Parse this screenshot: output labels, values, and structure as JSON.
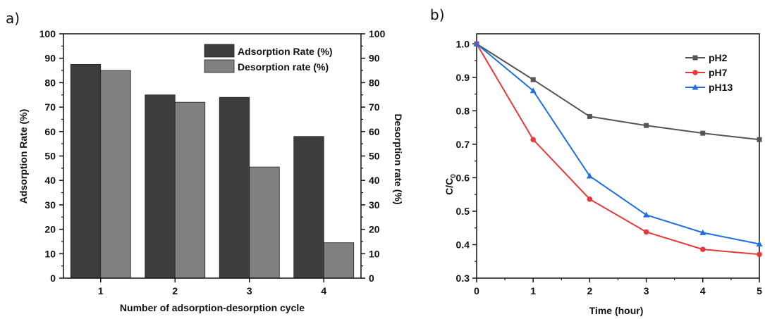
{
  "panels": {
    "a_label": "a)",
    "b_label": "b)"
  },
  "chart_data": [
    {
      "type": "bar",
      "categories": [
        "1",
        "2",
        "3",
        "4"
      ],
      "series": [
        {
          "name": "Adsorption Rate (%)",
          "values": [
            87.5,
            75,
            74,
            58
          ],
          "color": "#3d3d3d",
          "axis": "left"
        },
        {
          "name": "Desorption rate (%)",
          "values": [
            85,
            72,
            45.5,
            14.5
          ],
          "color": "#808080",
          "axis": "right"
        }
      ],
      "xlabel": "Number of adsorption-desorption cycle",
      "ylabel": "Adsorption Rate (%)",
      "y2label": "Desorption rate (%)",
      "ylim": [
        0,
        100
      ],
      "y2lim": [
        0,
        100
      ],
      "yticks": [
        "0",
        "10",
        "20",
        "30",
        "40",
        "50",
        "60",
        "70",
        "80",
        "90",
        "100"
      ],
      "legend_position": "top-right",
      "grid": false
    },
    {
      "type": "line",
      "x": [
        0,
        1,
        2,
        3,
        4,
        5
      ],
      "series": [
        {
          "name": "pH2",
          "values": [
            1.0,
            0.893,
            0.783,
            0.756,
            0.733,
            0.714
          ],
          "color": "#555555",
          "marker": "square"
        },
        {
          "name": "pH7",
          "values": [
            1.0,
            0.714,
            0.536,
            0.438,
            0.386,
            0.371
          ],
          "color": "#e8393a",
          "marker": "circle"
        },
        {
          "name": "pH13",
          "values": [
            1.0,
            0.86,
            0.605,
            0.489,
            0.436,
            0.402
          ],
          "color": "#1f6fdd",
          "marker": "triangle"
        }
      ],
      "xlabel": "Time (hour)",
      "ylabel_main": "C/C",
      "ylabel_sub": "0",
      "xlim": [
        0,
        5
      ],
      "ylim": [
        0.3,
        1.03
      ],
      "xticks": [
        "0",
        "1",
        "2",
        "3",
        "4",
        "5"
      ],
      "yticks": [
        "0.3",
        "0.4",
        "0.5",
        "0.6",
        "0.7",
        "0.8",
        "0.9",
        "1.0"
      ],
      "legend_position": "top-right",
      "grid": false
    }
  ]
}
